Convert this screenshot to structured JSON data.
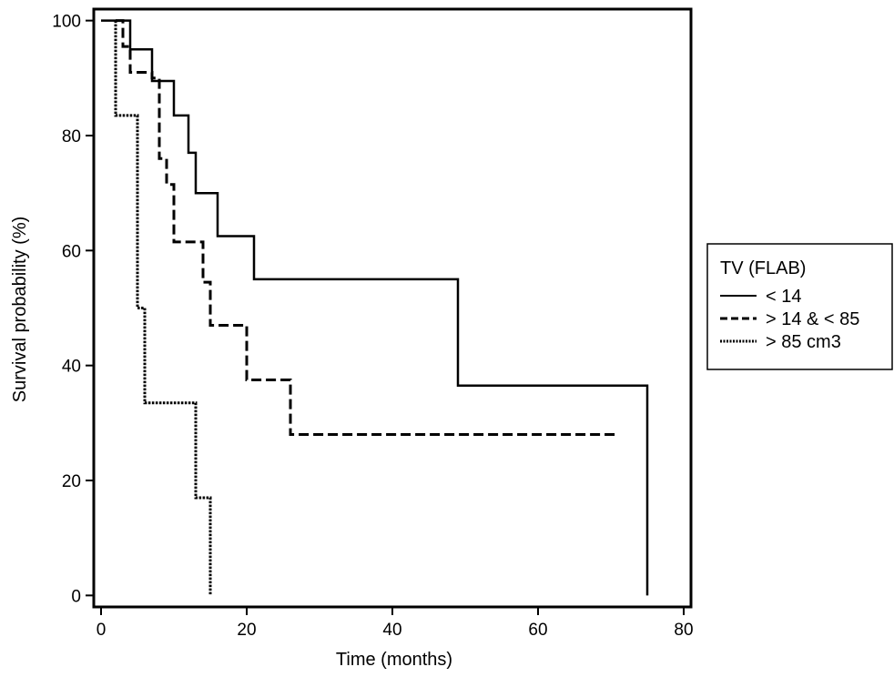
{
  "chart_data": {
    "type": "line",
    "step": "post",
    "xlabel": "Time (months)",
    "ylabel": "Survival probability (%)",
    "xlim": [
      -1,
      81
    ],
    "ylim": [
      -2,
      102
    ],
    "xticks": [
      0,
      20,
      40,
      60,
      80
    ],
    "yticks": [
      0,
      20,
      40,
      60,
      80,
      100
    ],
    "grid": false,
    "legend": {
      "placement": "right",
      "title": "TV (FLAB)"
    },
    "series": [
      {
        "name": "< 14",
        "style": "solid",
        "color": "#000000",
        "points": [
          [
            0,
            100
          ],
          [
            4,
            100
          ],
          [
            4,
            95
          ],
          [
            7,
            95
          ],
          [
            7,
            89.5
          ],
          [
            10,
            89.5
          ],
          [
            10,
            83.5
          ],
          [
            12,
            83.5
          ],
          [
            12,
            77
          ],
          [
            13,
            77
          ],
          [
            13,
            70
          ],
          [
            16,
            70
          ],
          [
            16,
            62.5
          ],
          [
            21,
            62.5
          ],
          [
            21,
            55
          ],
          [
            49,
            55
          ],
          [
            49,
            36.5
          ],
          [
            75,
            36.5
          ],
          [
            75,
            0
          ]
        ]
      },
      {
        "name": "> 14 & < 85",
        "style": "dashed",
        "color": "#000000",
        "points": [
          [
            2,
            100
          ],
          [
            3,
            100
          ],
          [
            3,
            95.5
          ],
          [
            4,
            95.5
          ],
          [
            4,
            91
          ],
          [
            7,
            91
          ],
          [
            7,
            90
          ],
          [
            8,
            90
          ],
          [
            8,
            76
          ],
          [
            9,
            76
          ],
          [
            9,
            71.5
          ],
          [
            10,
            71.5
          ],
          [
            10,
            61.5
          ],
          [
            14,
            61.5
          ],
          [
            14,
            54.5
          ],
          [
            15,
            54.5
          ],
          [
            15,
            47
          ],
          [
            20,
            47
          ],
          [
            20,
            37.5
          ],
          [
            26,
            37.5
          ],
          [
            26,
            28
          ],
          [
            71,
            28
          ]
        ]
      },
      {
        "name": "> 85 cm3",
        "style": "dotted",
        "color": "#000000",
        "points": [
          [
            2,
            100
          ],
          [
            2,
            83.5
          ],
          [
            5,
            83.5
          ],
          [
            5,
            50
          ],
          [
            6,
            50
          ],
          [
            6,
            33.5
          ],
          [
            13,
            33.5
          ],
          [
            13,
            17
          ],
          [
            15,
            17
          ],
          [
            15,
            0
          ]
        ]
      }
    ]
  }
}
